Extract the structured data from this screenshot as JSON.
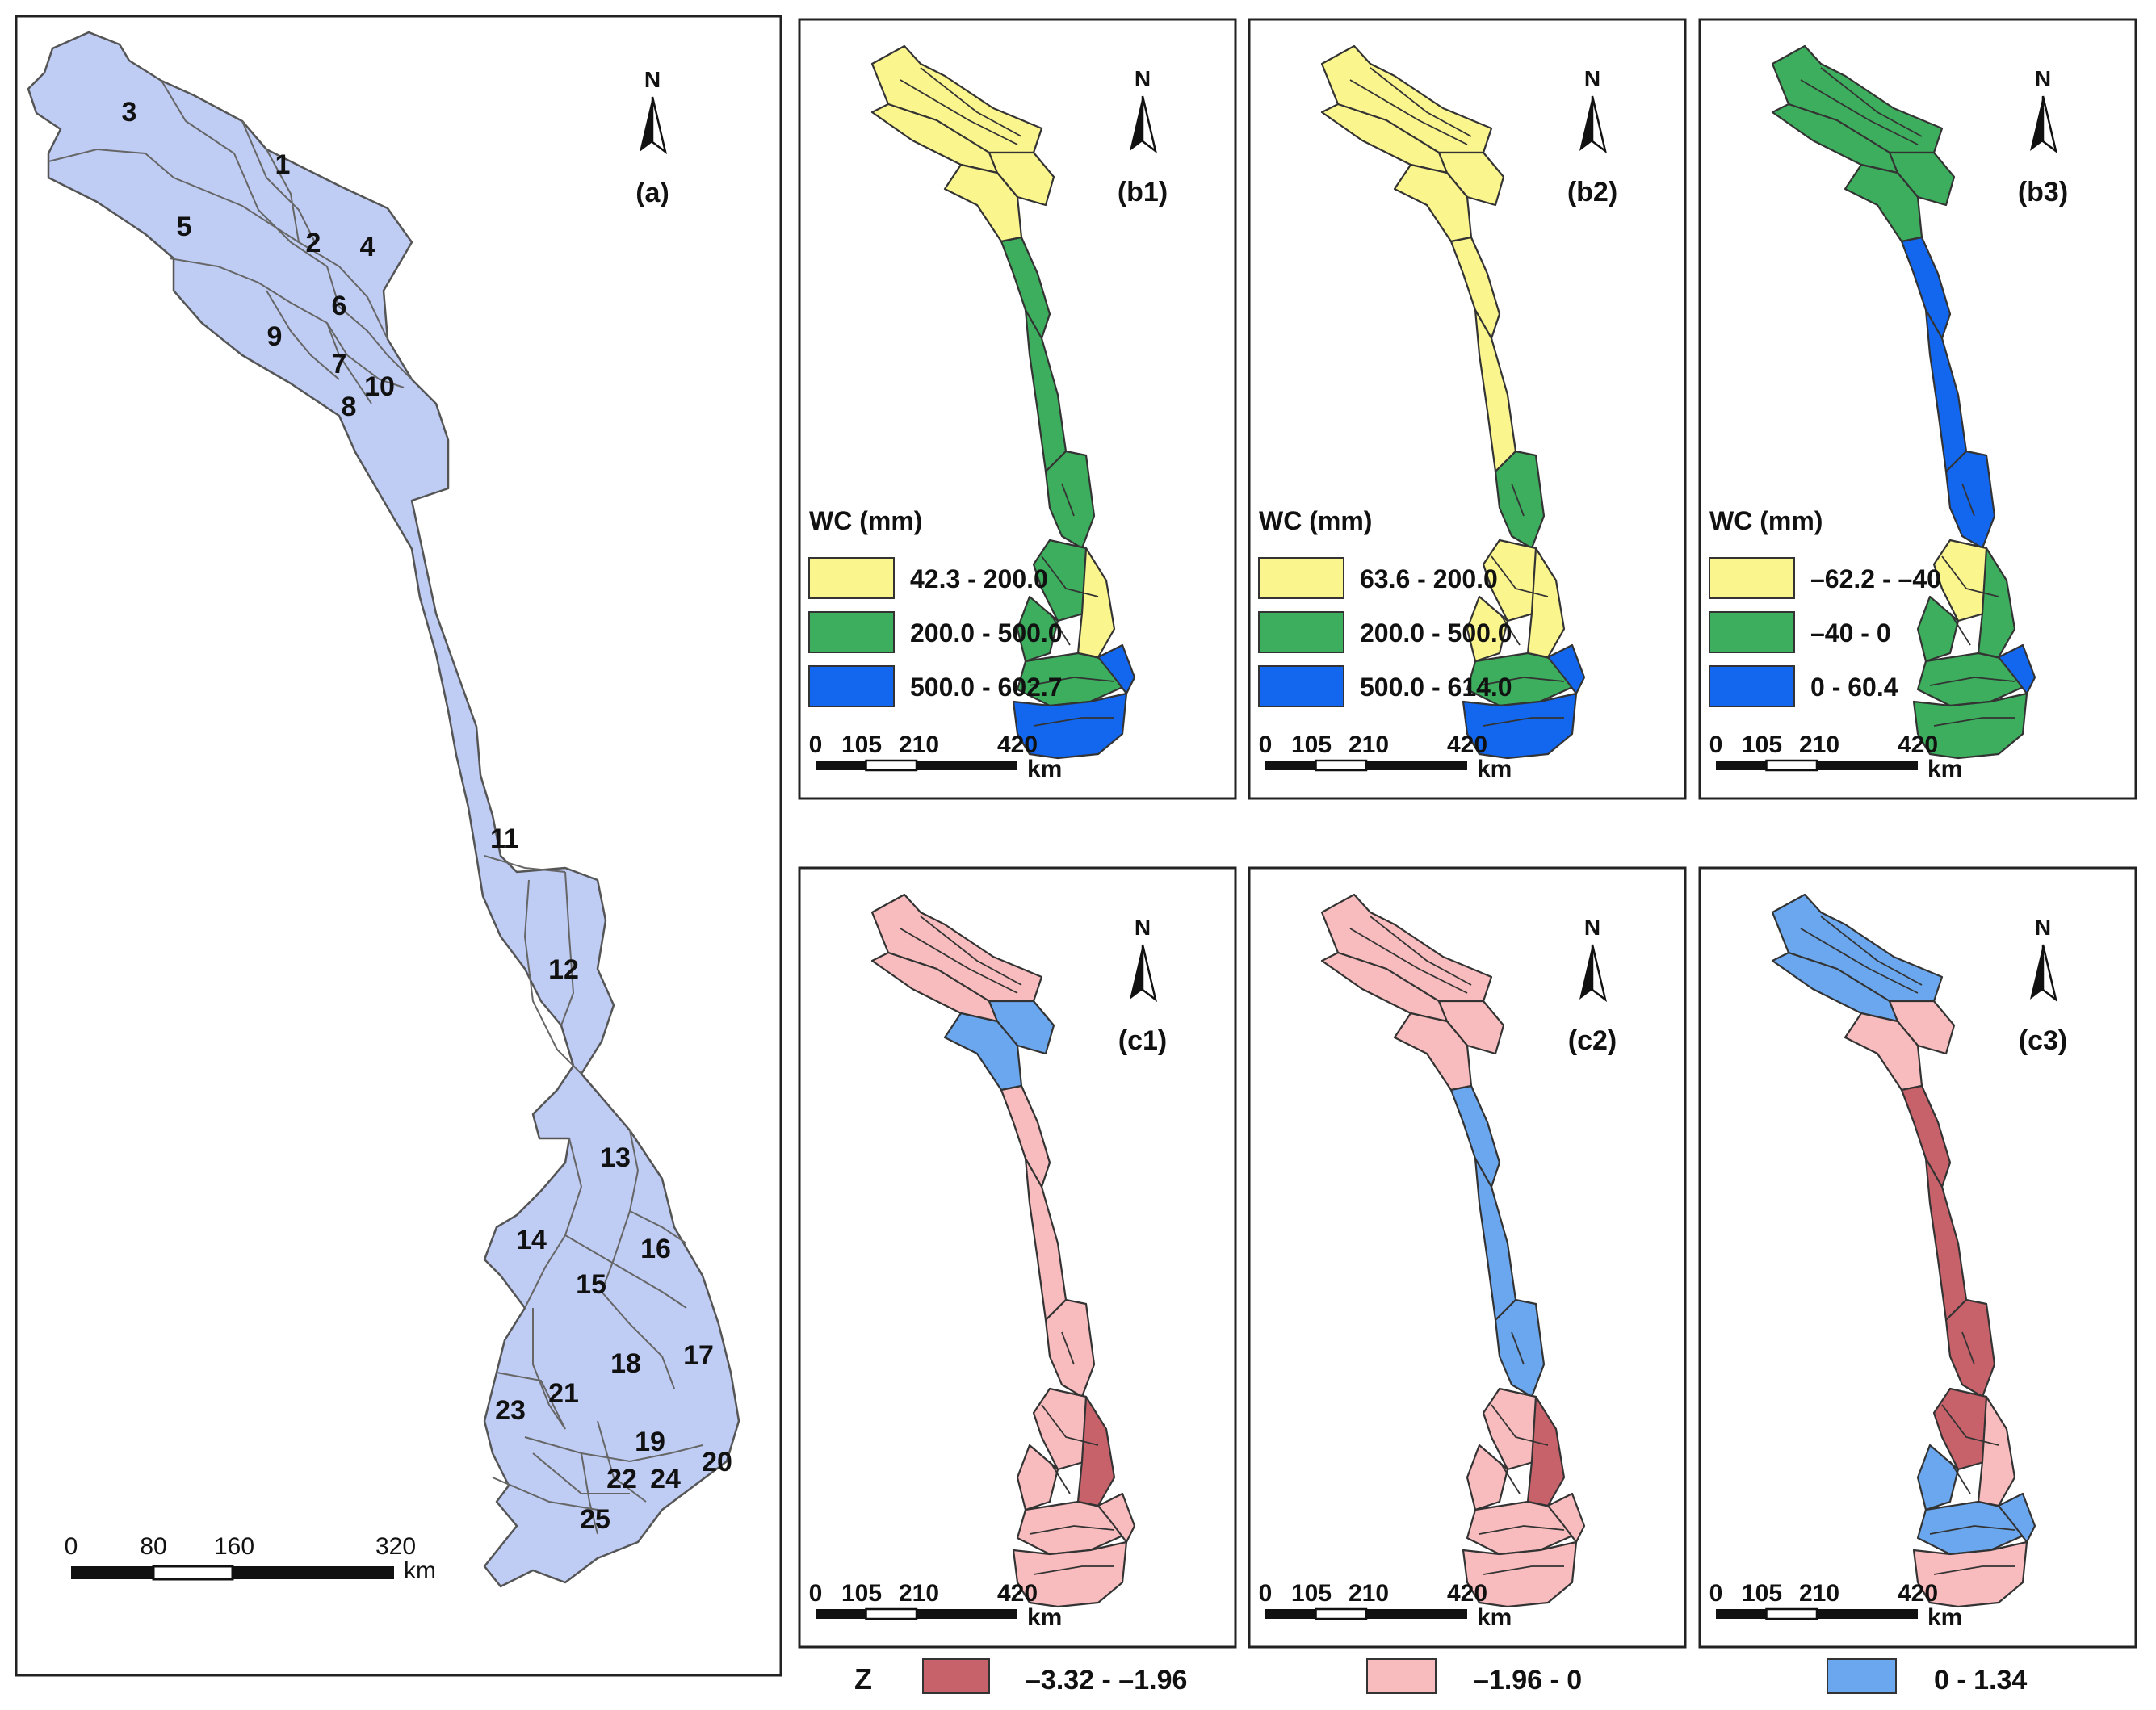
{
  "north_label": "N",
  "panel_a": {
    "label": "(a)",
    "fill_color": "#bfccf4",
    "subbasin_labels": [
      "1",
      "2",
      "3",
      "4",
      "5",
      "6",
      "7",
      "8",
      "9",
      "10",
      "11",
      "12",
      "13",
      "14",
      "15",
      "16",
      "17",
      "18",
      "19",
      "20",
      "21",
      "22",
      "23",
      "24",
      "25"
    ],
    "scale_ticks": [
      "0",
      "80",
      "160",
      "320"
    ],
    "scale_unit": "km"
  },
  "b_panels": [
    {
      "label": "(b1)",
      "legend_title": "WC (mm)",
      "classes": [
        {
          "range": "42.3 - 200.0",
          "color": "#fbf58e"
        },
        {
          "range": "200.0 - 500.0",
          "color": "#3cae5d"
        },
        {
          "range": "500.0 - 602.7",
          "color": "#1267ee"
        }
      ],
      "zone_classes": [
        0,
        0,
        0,
        0,
        1,
        1,
        1,
        1,
        1,
        0,
        1,
        2,
        2
      ]
    },
    {
      "label": "(b2)",
      "legend_title": "WC (mm)",
      "classes": [
        {
          "range": "63.6 - 200.0",
          "color": "#fbf58e"
        },
        {
          "range": "200.0 - 500.0",
          "color": "#3cae5d"
        },
        {
          "range": "500.0 - 614.0",
          "color": "#1267ee"
        }
      ],
      "zone_classes": [
        0,
        0,
        0,
        0,
        0,
        0,
        1,
        0,
        0,
        0,
        1,
        2,
        2
      ]
    },
    {
      "label": "(b3)",
      "legend_title": "WC (mm)",
      "classes": [
        {
          "range": "–62.2 - –40",
          "color": "#fbf58e"
        },
        {
          "range": "–40 - 0",
          "color": "#3cae5d"
        },
        {
          "range": "0 - 60.4",
          "color": "#1267ee"
        }
      ],
      "zone_classes": [
        1,
        1,
        1,
        1,
        2,
        2,
        2,
        0,
        1,
        1,
        1,
        1,
        2
      ]
    }
  ],
  "c_panels": [
    {
      "label": "(c1)",
      "zone_classes": [
        1,
        1,
        2,
        2,
        1,
        1,
        1,
        1,
        1,
        0,
        1,
        1,
        1
      ]
    },
    {
      "label": "(c2)",
      "zone_classes": [
        1,
        1,
        1,
        1,
        2,
        2,
        2,
        1,
        1,
        0,
        1,
        1,
        1
      ]
    },
    {
      "label": "(c3)",
      "zone_classes": [
        2,
        2,
        1,
        1,
        0,
        0,
        0,
        0,
        2,
        1,
        2,
        1,
        2
      ]
    }
  ],
  "small_scale": {
    "ticks": [
      "0",
      "105",
      "210",
      "420"
    ],
    "unit": "km"
  },
  "z_legend": {
    "title": "Z",
    "classes": [
      {
        "range": "–3.32 - –1.96",
        "color": "#c8626a"
      },
      {
        "range": "–1.96 - 0",
        "color": "#f9bcbe"
      },
      {
        "range": "0 - 1.34",
        "color": "#6aa7ef"
      }
    ]
  }
}
